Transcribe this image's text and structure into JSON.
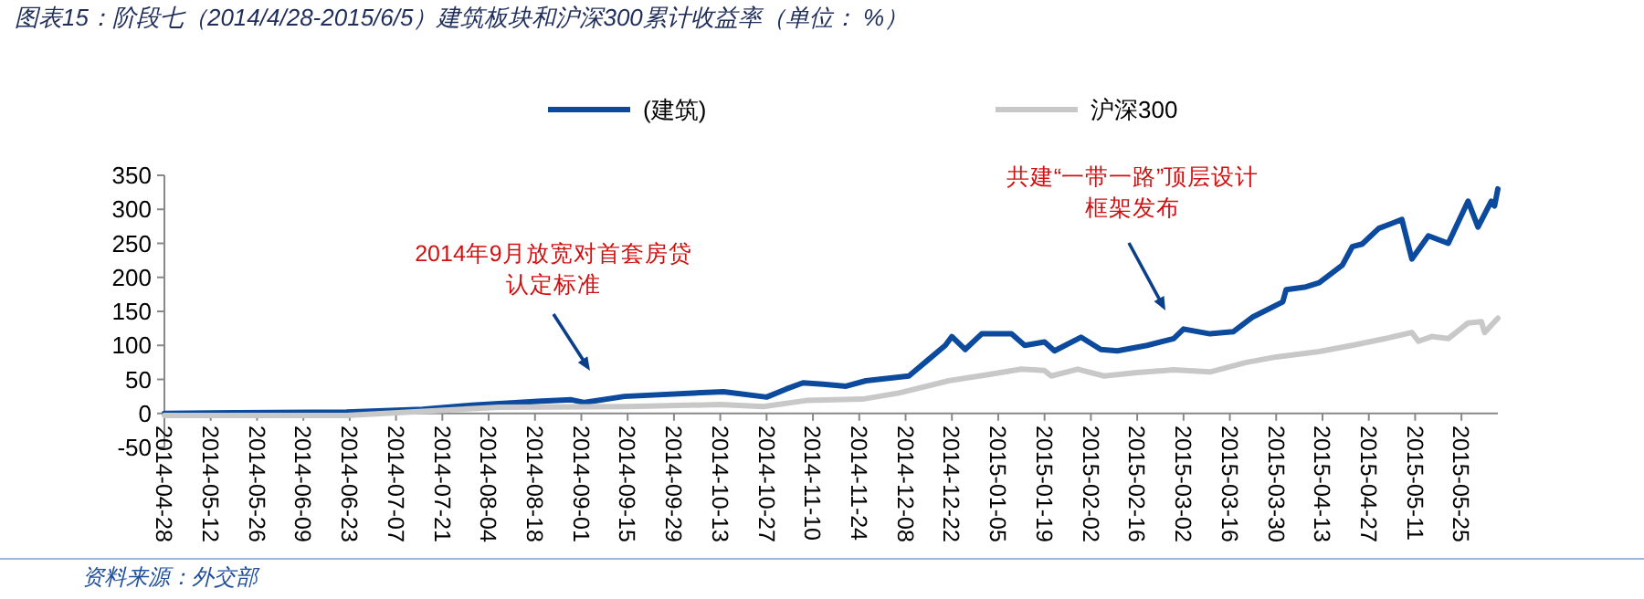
{
  "chart_data": {
    "type": "line",
    "title": "图表15：阶段七（2014/4/28-2015/6/5）建筑板块和沪深300累计收益率（单位：  %）",
    "series": [
      {
        "name": "(建筑)",
        "color": "#0b4a9c",
        "x": [
          "2014-04-28",
          "2014-05-20",
          "2014-06-22",
          "2014-07-15",
          "2014-07-30",
          "2014-08-20",
          "2014-08-29",
          "2014-09-02",
          "2014-09-14",
          "2014-10-14",
          "2014-10-27",
          "2014-11-02",
          "2014-11-07",
          "2014-11-13",
          "2014-11-20",
          "2014-11-26",
          "2014-12-09",
          "2014-12-20",
          "2014-12-22",
          "2014-12-26",
          "2014-12-31",
          "2015-01-09",
          "2015-01-13",
          "2015-01-19",
          "2015-01-22",
          "2015-01-30",
          "2015-02-05",
          "2015-02-10",
          "2015-02-19",
          "2015-02-27",
          "2015-03-02",
          "2015-03-10",
          "2015-03-17",
          "2015-03-23",
          "2015-04-01",
          "2015-04-02",
          "2015-04-08",
          "2015-04-12",
          "2015-04-19",
          "2015-04-22",
          "2015-04-25",
          "2015-04-30",
          "2015-05-07",
          "2015-05-10",
          "2015-05-15",
          "2015-05-21",
          "2015-05-27",
          "2015-05-30",
          "2015-06-03",
          "2015-06-04",
          "2015-06-05"
        ],
        "values": [
          0,
          1,
          2,
          6,
          12,
          18,
          20,
          16,
          25,
          32,
          24,
          36,
          45,
          43,
          40,
          48,
          55,
          100,
          113,
          94,
          117,
          117,
          100,
          105,
          92,
          112,
          94,
          92,
          100,
          110,
          124,
          117,
          120,
          142,
          164,
          182,
          186,
          192,
          218,
          245,
          249,
          272,
          285,
          227,
          261,
          250,
          312,
          274,
          312,
          305,
          330
        ]
      },
      {
        "name": "沪深300",
        "color": "#c8c8c8",
        "x": [
          "2014-04-28",
          "2014-06-22",
          "2014-08-07",
          "2014-09-15",
          "2014-10-13",
          "2014-10-26",
          "2014-11-08",
          "2014-11-25",
          "2014-12-06",
          "2014-12-21",
          "2015-01-02",
          "2015-01-12",
          "2015-01-19",
          "2015-01-21",
          "2015-01-29",
          "2015-02-06",
          "2015-02-16",
          "2015-02-27",
          "2015-03-10",
          "2015-03-21",
          "2015-03-30",
          "2015-04-12",
          "2015-04-23",
          "2015-05-02",
          "2015-05-10",
          "2015-05-12",
          "2015-05-16",
          "2015-05-21",
          "2015-05-27",
          "2015-05-31",
          "2015-06-01",
          "2015-06-05"
        ],
        "values": [
          -3,
          -3,
          9,
          10,
          13,
          10,
          19,
          21,
          30,
          48,
          57,
          65,
          63,
          55,
          65,
          55,
          60,
          64,
          61,
          75,
          83,
          91,
          101,
          110,
          119,
          106,
          113,
          110,
          133,
          135,
          119,
          140
        ]
      }
    ],
    "xlim": [
      "2014-04-28",
      "2015-06-05"
    ],
    "xticks": [
      "2014-04-28",
      "2014-05-12",
      "2014-05-26",
      "2014-06-09",
      "2014-06-23",
      "2014-07-07",
      "2014-07-21",
      "2014-08-04",
      "2014-08-18",
      "2014-09-01",
      "2014-09-15",
      "2014-09-29",
      "2014-10-13",
      "2014-10-27",
      "2014-11-10",
      "2014-11-24",
      "2014-12-08",
      "2014-12-22",
      "2015-01-05",
      "2015-01-19",
      "2015-02-02",
      "2015-02-16",
      "2015-03-02",
      "2015-03-16",
      "2015-03-30",
      "2015-04-13",
      "2015-04-27",
      "2015-05-11",
      "2015-05-25"
    ],
    "ylim": [
      -50,
      350
    ],
    "yticks": [
      -50,
      0,
      50,
      100,
      150,
      200,
      250,
      300,
      350
    ],
    "legend": "top",
    "annotations": [
      "2014年9月放宽对首套房贷",
      "认定标准",
      "共建“一带一路”顶层设计",
      "框架发布",
      "资料来源：外交部"
    ]
  }
}
